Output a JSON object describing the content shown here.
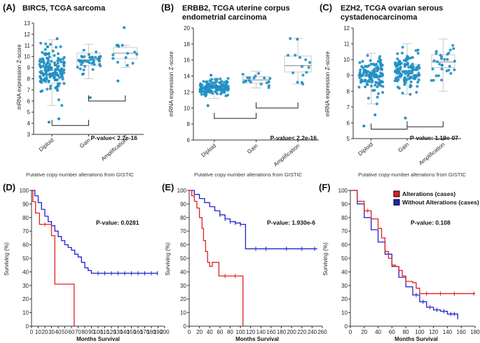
{
  "colors": {
    "dot": "#1f8fc4",
    "box": "#c9c9c9",
    "altered": "#e02020",
    "unaltered": "#2020d0",
    "axis": "#333333"
  },
  "chart_data": [
    {
      "id": "A",
      "type": "scatter",
      "panel_label": "(A)",
      "title": "BIRC5, TCGA sarcoma",
      "title2": "",
      "ylabel": "mRNA expression Z-score",
      "ylim": [
        3,
        13
      ],
      "yticks": [
        3,
        4,
        5,
        6,
        7,
        8,
        9,
        10,
        11,
        12,
        13
      ],
      "categories": [
        "Diploid",
        "Gain",
        "Amplification"
      ],
      "box_stats": [
        {
          "q1": 7.6,
          "med": 8.75,
          "q3": 9.5,
          "lo": 5.6,
          "hi": 11.5
        },
        {
          "q1": 9.2,
          "med": 9.7,
          "q3": 10.3,
          "lo": 8.0,
          "hi": 11.1
        },
        {
          "q1": 9.8,
          "med": 10.3,
          "q3": 10.8,
          "lo": 9.0,
          "hi": 11.0
        }
      ],
      "n_points": [
        160,
        45,
        14
      ],
      "spread": [
        0.95,
        0.6,
        0.8
      ],
      "outliers": [
        [
          4.1,
          4.4,
          11.6
        ],
        [
          6.3
        ],
        [
          7.8,
          12.6
        ]
      ],
      "brackets": [
        [
          0,
          1,
          3.8
        ],
        [
          1,
          2,
          6.0
        ]
      ],
      "pvalue": "P-value< 2.2e-16",
      "xcaption": "Putative copy-number alterations from GISTIC"
    },
    {
      "id": "B",
      "type": "scatter",
      "panel_label": "(B)",
      "title": "ERBB2, TCGA uterine corpus",
      "title2": "endometrial carcinoma",
      "ylabel": "mRNA expression Z-score",
      "ylim": [
        6,
        20
      ],
      "yticks": [
        6,
        8,
        10,
        12,
        14,
        16,
        18,
        20
      ],
      "categories": [
        "Diploid",
        "Gain",
        "Amplification"
      ],
      "box_stats": [
        {
          "q1": 12.1,
          "med": 12.5,
          "q3": 12.8,
          "lo": 11.2,
          "hi": 13.7
        },
        {
          "q1": 13.1,
          "med": 13.5,
          "q3": 13.9,
          "lo": 12.5,
          "hi": 14.6
        },
        {
          "q1": 14.5,
          "med": 15.3,
          "q3": 16.5,
          "lo": 13.0,
          "hi": 18.7
        }
      ],
      "n_points": [
        140,
        18,
        14
      ],
      "spread": [
        0.45,
        0.45,
        1.4
      ],
      "outliers": [
        [
          10.3,
          14.1
        ],
        [],
        [
          18.6
        ]
      ],
      "brackets": [
        [
          0,
          1,
          8.7
        ],
        [
          1,
          2,
          10.0
        ]
      ],
      "pvalue": "P-value< 2.2e-16",
      "xcaption": "Putative copy-number alterations from GISTIC"
    },
    {
      "id": "C",
      "type": "scatter",
      "panel_label": "(C)",
      "title": "EZH2, TCGA ovarian serous",
      "title2": "cystadenocarcinoma",
      "ylabel": "mRNA expression Z-score",
      "ylim": [
        5,
        12
      ],
      "yticks": [
        5,
        6,
        7,
        8,
        9,
        10,
        11,
        12
      ],
      "categories": [
        "Diploid",
        "Gain",
        "Amplification"
      ],
      "box_stats": [
        {
          "q1": 8.6,
          "med": 8.95,
          "q3": 9.3,
          "lo": 7.2,
          "hi": 10.4
        },
        {
          "q1": 8.8,
          "med": 9.3,
          "q3": 9.7,
          "lo": 7.8,
          "hi": 11.0
        },
        {
          "q1": 9.5,
          "med": 9.85,
          "q3": 10.3,
          "lo": 8.0,
          "hi": 11.3
        }
      ],
      "n_points": [
        130,
        130,
        30
      ],
      "spread": [
        0.5,
        0.55,
        0.6
      ],
      "outliers": [
        [
          5.8,
          6.5
        ],
        [
          6.3
        ],
        []
      ],
      "brackets": [
        [
          0,
          1,
          5.6
        ],
        [
          1,
          2,
          5.75
        ]
      ],
      "pvalue": "P-value: 1.19e-07",
      "xcaption": "Putative copy-number alterations from GISTIC"
    },
    {
      "id": "D",
      "type": "line",
      "panel_label": "(D)",
      "xlabel": "Months Survival",
      "ylabel": "Surviving (%)",
      "xlim": [
        0,
        200
      ],
      "xticks": [
        0,
        10,
        20,
        30,
        40,
        50,
        60,
        70,
        80,
        90,
        100,
        110,
        120,
        130,
        140,
        150,
        160,
        170,
        180,
        190,
        200
      ],
      "ylim": [
        0,
        100
      ],
      "yticks": [
        0,
        10,
        20,
        30,
        40,
        50,
        60,
        70,
        80,
        90,
        100
      ],
      "pvalue": "P-value: 0.0281",
      "legend": null,
      "series": [
        {
          "name": "Alterations (cases)",
          "color": "#e02020",
          "x": [
            0,
            2,
            2,
            6,
            6,
            12,
            12,
            30,
            30,
            35,
            35,
            64,
            64
          ],
          "y": [
            100,
            100,
            91.7,
            91.7,
            83.3,
            83.3,
            75,
            75,
            66.7,
            66.7,
            31,
            31,
            0
          ],
          "censor_x": [
            20
          ]
        },
        {
          "name": "Without Alterations (cases)",
          "color": "#2020d0",
          "x": [
            0,
            5,
            10,
            15,
            20,
            25,
            30,
            35,
            40,
            45,
            50,
            55,
            60,
            65,
            70,
            75,
            80,
            85,
            90,
            190
          ],
          "y": [
            100,
            96,
            91,
            86,
            81,
            77,
            74,
            70,
            66,
            63,
            60,
            58,
            56,
            53,
            51,
            47,
            43,
            41,
            39,
            39
          ],
          "censor_x": [
            100,
            110,
            120,
            130,
            140,
            150,
            160,
            170,
            180,
            189
          ]
        }
      ]
    },
    {
      "id": "E",
      "type": "line",
      "panel_label": "(E)",
      "xlabel": "Months Survival",
      "ylabel": "Surviving (%)",
      "xlim": [
        0,
        260
      ],
      "xticks": [
        0,
        20,
        40,
        60,
        80,
        100,
        120,
        140,
        160,
        180,
        200,
        220,
        240,
        260
      ],
      "ylim": [
        0,
        100
      ],
      "yticks": [
        0,
        10,
        20,
        30,
        40,
        50,
        60,
        70,
        80,
        90,
        100
      ],
      "pvalue": "P-value: 1.930e-6",
      "legend": null,
      "series": [
        {
          "name": "Alterations (cases)",
          "color": "#e02020",
          "x": [
            0,
            5,
            10,
            15,
            20,
            25,
            28,
            32,
            36,
            40,
            45,
            55,
            58,
            100,
            105,
            105
          ],
          "y": [
            100,
            96,
            92,
            87,
            80,
            72,
            63,
            55,
            47,
            44,
            47,
            47,
            37,
            37,
            36,
            0
          ],
          "censor_x": [
            70,
            90
          ]
        },
        {
          "name": "Without Alterations (cases)",
          "color": "#2020d0",
          "x": [
            0,
            10,
            20,
            30,
            40,
            50,
            60,
            70,
            80,
            90,
            100,
            107,
            110,
            250
          ],
          "y": [
            100,
            97,
            94,
            91,
            88,
            85,
            82,
            79,
            77,
            76,
            75,
            75,
            57,
            57
          ],
          "censor_x": [
            60,
            70,
            80,
            90,
            100,
            130,
            150,
            190,
            220,
            245
          ]
        }
      ]
    },
    {
      "id": "F",
      "type": "line",
      "panel_label": "(F)",
      "xlabel": "Months Survival",
      "ylabel": "Surviving (%)",
      "xlim": [
        0,
        180
      ],
      "xticks": [
        0,
        20,
        40,
        60,
        80,
        100,
        120,
        140,
        160,
        180
      ],
      "ylim": [
        0,
        100
      ],
      "yticks": [
        0,
        10,
        20,
        30,
        40,
        50,
        60,
        70,
        80,
        90,
        100
      ],
      "pvalue": "P-value: 0.108",
      "legend": [
        "Alterations (cases)",
        "Without Alterations (cases)"
      ],
      "series": [
        {
          "name": "Alterations (cases)",
          "color": "#e02020",
          "x": [
            0,
            10,
            20,
            30,
            40,
            45,
            50,
            55,
            60,
            65,
            70,
            75,
            80,
            85,
            90,
            95,
            100,
            180
          ],
          "y": [
            100,
            92,
            85,
            79,
            72,
            65,
            55,
            50,
            45,
            44,
            41,
            37,
            33,
            33,
            32,
            28,
            24,
            24
          ],
          "censor_x": [
            25,
            60,
            80,
            110,
            130,
            150,
            178
          ]
        },
        {
          "name": "Without Alterations (cases)",
          "color": "#2020d0",
          "x": [
            0,
            10,
            20,
            30,
            40,
            50,
            60,
            70,
            80,
            90,
            100,
            110,
            120,
            130,
            140,
            150,
            155,
            155
          ],
          "y": [
            100,
            90,
            80,
            71,
            62,
            53,
            44,
            36,
            29,
            23,
            18,
            14,
            12,
            11,
            9,
            9,
            9,
            5
          ],
          "censor_x": [
            95,
            105,
            115,
            125,
            135,
            145,
            150
          ]
        }
      ]
    }
  ]
}
